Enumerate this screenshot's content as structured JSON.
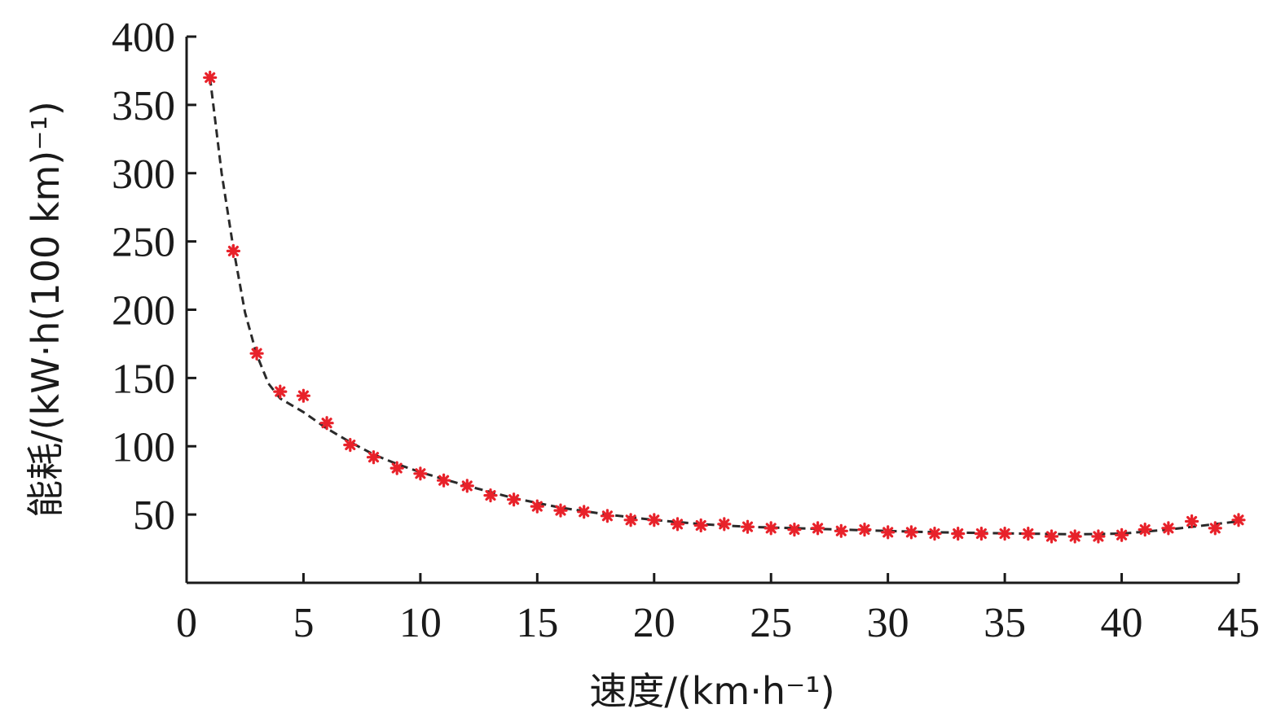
{
  "chart_data": {
    "type": "scatter",
    "title": "",
    "xlabel": "速度/(km·h⁻¹)",
    "ylabel": "能耗/(kW·h(100 km)⁻¹)",
    "xlim": [
      0,
      45
    ],
    "ylim": [
      0,
      400
    ],
    "x_ticks": [
      "0",
      "5",
      "10",
      "15",
      "20",
      "25",
      "30",
      "35",
      "40",
      "45"
    ],
    "y_ticks": [
      "50",
      "100",
      "150",
      "200",
      "250",
      "300",
      "350",
      "400"
    ],
    "grid": false,
    "legend": "none",
    "series": [
      {
        "style": "markers",
        "marker": "asterisk",
        "color": "#e8222a",
        "x": [
          1,
          2,
          3,
          4,
          5,
          6,
          7,
          8,
          9,
          10,
          11,
          12,
          13,
          14,
          15,
          16,
          17,
          18,
          19,
          20,
          21,
          22,
          23,
          24,
          25,
          26,
          27,
          28,
          29,
          30,
          31,
          32,
          33,
          34,
          35,
          36,
          37,
          38,
          39,
          40,
          41,
          42,
          43,
          44,
          45
        ],
        "y": [
          370,
          243,
          168,
          140,
          137,
          117,
          101,
          92,
          84,
          80,
          75,
          71,
          64,
          61,
          56,
          53,
          52,
          49,
          46,
          46,
          43,
          42,
          43,
          41,
          40,
          39,
          40,
          38,
          39,
          37,
          37,
          36,
          36,
          36,
          36,
          36,
          34,
          34,
          34,
          35,
          39,
          40,
          45,
          40,
          46
        ]
      },
      {
        "style": "dashed-line",
        "color": "#2a2a2a",
        "x": [
          1,
          1.5,
          2,
          2.5,
          3,
          3.5,
          4,
          5,
          6,
          7,
          8,
          9,
          10,
          12,
          14,
          16,
          18,
          20,
          22,
          24,
          26,
          28,
          30,
          32,
          34,
          36,
          38,
          40,
          42,
          44,
          45
        ],
        "y": [
          370,
          300,
          245,
          198,
          167,
          146,
          135,
          125,
          113,
          103,
          94,
          87,
          81,
          71,
          62,
          55,
          50,
          46,
          43,
          41,
          40,
          39,
          38,
          37,
          36.5,
          36,
          35.5,
          36,
          39,
          43,
          45
        ]
      }
    ]
  }
}
